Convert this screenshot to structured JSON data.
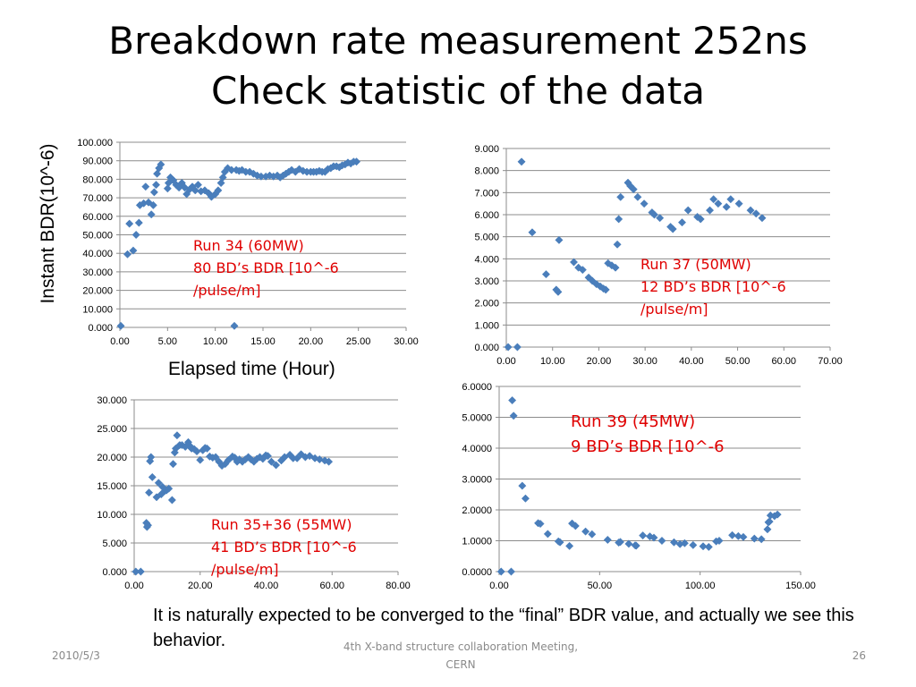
{
  "slide": {
    "title_line1": "Breakdown rate measurement 252ns",
    "title_line2": "Check statistic of the data",
    "y_axis_label": "Instant BDR(10^-6)",
    "x_axis_label": "Elapsed time (Hour)",
    "caption": "It is naturally expected to be converged to the “final” BDR value, and actually we see this behavior.",
    "footer_date": "2010/5/3",
    "footer_center": "4th X-band structure collaboration Meeting, CERN",
    "footer_page": "26"
  },
  "colors": {
    "marker": "#4a7ebb",
    "annotation": "#e00000",
    "grid": "#8c8c8c"
  },
  "annotations": {
    "run34": {
      "line1": "Run 34  (60MW)",
      "line2": "80 BD’s BDR  [10^-6",
      "line3": "/pulse/m]"
    },
    "run37": {
      "line1": "Run 37  (50MW)",
      "line2": "12 BD’s  BDR  [10^-6",
      "line3": "/pulse/m]"
    },
    "run3536": {
      "line1": "Run 35+36  (55MW)",
      "line2": "41 BD’s BDR  [10^-6",
      "line3": "/pulse/m]"
    },
    "run39": {
      "line1": "Run 39  (45MW)",
      "line2": "9 BD’s  BDR  [10^-6"
    }
  },
  "chart_data": [
    {
      "type": "scatter",
      "xlim": [
        0,
        30
      ],
      "ylim": [
        0,
        100
      ],
      "xticks": [
        "0.00",
        "5.00",
        "10.00",
        "15.00",
        "20.00",
        "25.00",
        "30.00"
      ],
      "yticks": [
        "0.000",
        "10.000",
        "20.000",
        "30.000",
        "40.000",
        "50.000",
        "60.000",
        "70.000",
        "80.000",
        "90.000",
        "100.000"
      ],
      "grid": "horizontal",
      "points": [
        [
          0.1,
          0.8
        ],
        [
          0.8,
          39.5
        ],
        [
          1.0,
          56
        ],
        [
          1.4,
          41.5
        ],
        [
          1.7,
          50
        ],
        [
          2.0,
          56.5
        ],
        [
          2.1,
          66
        ],
        [
          2.5,
          67
        ],
        [
          2.7,
          76
        ],
        [
          3.0,
          67.5
        ],
        [
          3.3,
          61
        ],
        [
          3.5,
          66
        ],
        [
          3.6,
          73
        ],
        [
          3.8,
          77
        ],
        [
          3.9,
          83
        ],
        [
          4.1,
          86
        ],
        [
          4.3,
          88
        ],
        [
          5.0,
          75
        ],
        [
          5.1,
          78
        ],
        [
          5.3,
          81
        ],
        [
          5.6,
          79.5
        ],
        [
          5.9,
          77
        ],
        [
          6.2,
          75.5
        ],
        [
          6.5,
          78
        ],
        [
          6.8,
          75.5
        ],
        [
          7.0,
          72
        ],
        [
          7.3,
          74.5
        ],
        [
          7.6,
          76
        ],
        [
          7.9,
          74
        ],
        [
          8.2,
          77
        ],
        [
          8.5,
          73.5
        ],
        [
          8.9,
          74
        ],
        [
          9.3,
          72.5
        ],
        [
          9.6,
          70.5
        ],
        [
          10.0,
          72
        ],
        [
          10.3,
          74
        ],
        [
          10.6,
          78
        ],
        [
          10.8,
          81
        ],
        [
          11.0,
          84
        ],
        [
          11.3,
          86
        ],
        [
          11.7,
          85
        ],
        [
          12.0,
          0.8
        ],
        [
          12.2,
          85
        ],
        [
          12.5,
          84.5
        ],
        [
          12.8,
          85
        ],
        [
          13.2,
          84
        ],
        [
          13.6,
          84
        ],
        [
          14.0,
          83
        ],
        [
          14.4,
          82
        ],
        [
          14.8,
          81.5
        ],
        [
          15.3,
          81.5
        ],
        [
          15.7,
          82
        ],
        [
          16.1,
          81.5
        ],
        [
          16.5,
          82
        ],
        [
          16.8,
          81
        ],
        [
          17.1,
          82
        ],
        [
          17.4,
          83
        ],
        [
          17.7,
          84
        ],
        [
          18.0,
          85
        ],
        [
          18.4,
          84
        ],
        [
          18.8,
          85.5
        ],
        [
          19.2,
          84.5
        ],
        [
          19.6,
          84
        ],
        [
          20.0,
          84
        ],
        [
          20.3,
          84
        ],
        [
          20.6,
          84
        ],
        [
          20.9,
          84.5
        ],
        [
          21.2,
          84
        ],
        [
          21.5,
          84
        ],
        [
          21.8,
          85.5
        ],
        [
          22.1,
          86
        ],
        [
          22.4,
          87
        ],
        [
          22.7,
          87
        ],
        [
          23.0,
          86.5
        ],
        [
          23.3,
          87.5
        ],
        [
          23.6,
          88
        ],
        [
          23.9,
          89
        ],
        [
          24.2,
          88.5
        ],
        [
          24.5,
          89.5
        ],
        [
          24.8,
          89.5
        ]
      ]
    },
    {
      "type": "scatter",
      "xlim": [
        0,
        70
      ],
      "ylim": [
        0,
        9
      ],
      "xticks": [
        "0.00",
        "10.00",
        "20.00",
        "30.00",
        "40.00",
        "50.00",
        "60.00",
        "70.00"
      ],
      "yticks": [
        "0.000",
        "1.000",
        "2.000",
        "3.000",
        "4.000",
        "5.000",
        "6.000",
        "7.000",
        "8.000",
        "9.000"
      ],
      "grid": "horizontal",
      "points": [
        [
          0.4,
          0.0
        ],
        [
          2.4,
          0.0
        ],
        [
          3.3,
          8.4
        ],
        [
          5.6,
          5.2
        ],
        [
          8.6,
          3.3
        ],
        [
          10.8,
          2.6
        ],
        [
          11.2,
          2.5
        ],
        [
          11.4,
          4.85
        ],
        [
          14.6,
          3.85
        ],
        [
          15.6,
          3.6
        ],
        [
          16.5,
          3.5
        ],
        [
          17.8,
          3.15
        ],
        [
          18.6,
          3.0
        ],
        [
          19.5,
          2.85
        ],
        [
          20.3,
          2.75
        ],
        [
          21.0,
          2.65
        ],
        [
          21.5,
          2.6
        ],
        [
          22.0,
          3.8
        ],
        [
          22.8,
          3.7
        ],
        [
          23.6,
          3.6
        ],
        [
          24.0,
          4.65
        ],
        [
          24.3,
          5.8
        ],
        [
          24.7,
          6.8
        ],
        [
          26.3,
          7.45
        ],
        [
          26.8,
          7.3
        ],
        [
          27.5,
          7.15
        ],
        [
          28.4,
          6.8
        ],
        [
          29.8,
          6.5
        ],
        [
          31.5,
          6.1
        ],
        [
          32.0,
          6.0
        ],
        [
          33.2,
          5.85
        ],
        [
          35.5,
          5.45
        ],
        [
          36.0,
          5.35
        ],
        [
          38.0,
          5.65
        ],
        [
          39.3,
          6.2
        ],
        [
          41.3,
          5.9
        ],
        [
          42.0,
          5.8
        ],
        [
          44.0,
          6.2
        ],
        [
          44.8,
          6.7
        ],
        [
          45.8,
          6.5
        ],
        [
          47.6,
          6.35
        ],
        [
          48.5,
          6.7
        ],
        [
          50.3,
          6.5
        ],
        [
          52.8,
          6.2
        ],
        [
          54.0,
          6.05
        ],
        [
          55.3,
          5.85
        ]
      ]
    },
    {
      "type": "scatter",
      "xlim": [
        0,
        80
      ],
      "ylim": [
        0,
        30
      ],
      "xticks": [
        "0.00",
        "20.00",
        "40.00",
        "60.00",
        "80.00"
      ],
      "yticks": [
        "0.000",
        "5.000",
        "10.000",
        "15.000",
        "20.000",
        "25.000",
        "30.000"
      ],
      "grid": "horizontal",
      "points": [
        [
          0.5,
          0
        ],
        [
          2.0,
          0
        ],
        [
          3.7,
          8.5
        ],
        [
          3.9,
          7.8
        ],
        [
          4.2,
          8.1
        ],
        [
          4.5,
          13.8
        ],
        [
          4.8,
          19.3
        ],
        [
          5.1,
          20
        ],
        [
          5.5,
          16.5
        ],
        [
          6.8,
          13.0
        ],
        [
          7.4,
          15.5
        ],
        [
          8.2,
          13.5
        ],
        [
          8.6,
          14.8
        ],
        [
          9.3,
          14.1
        ],
        [
          9.8,
          14.2
        ],
        [
          10.5,
          14.5
        ],
        [
          11.5,
          12.5
        ],
        [
          11.8,
          18.8
        ],
        [
          12.3,
          20.8
        ],
        [
          12.6,
          21.5
        ],
        [
          13.0,
          23.8
        ],
        [
          13.8,
          22.1
        ],
        [
          14.5,
          22.1
        ],
        [
          15.5,
          21.8
        ],
        [
          16.4,
          22.6
        ],
        [
          16.8,
          22.0
        ],
        [
          17.4,
          21.5
        ],
        [
          18.2,
          21.4
        ],
        [
          19.0,
          21.0
        ],
        [
          20.0,
          19.5
        ],
        [
          20.8,
          21.2
        ],
        [
          21.5,
          21.6
        ],
        [
          22.1,
          21.5
        ],
        [
          22.9,
          20.1
        ],
        [
          23.8,
          19.9
        ],
        [
          24.7,
          20.0
        ],
        [
          25.7,
          19.2
        ],
        [
          26.6,
          18.5
        ],
        [
          27.6,
          18.8
        ],
        [
          28.6,
          19.5
        ],
        [
          29.8,
          20.1
        ],
        [
          30.5,
          19.9
        ],
        [
          31.2,
          19.2
        ],
        [
          31.9,
          19.6
        ],
        [
          32.8,
          19.2
        ],
        [
          33.7,
          19.6
        ],
        [
          34.6,
          20.0
        ],
        [
          35.4,
          19.6
        ],
        [
          36.3,
          19.2
        ],
        [
          37.2,
          19.7
        ],
        [
          38.1,
          20.0
        ],
        [
          39.0,
          19.7
        ],
        [
          39.9,
          20.3
        ],
        [
          40.5,
          20.2
        ],
        [
          41.6,
          19.2
        ],
        [
          43.0,
          18.6
        ],
        [
          44.6,
          19.4
        ],
        [
          45.6,
          20.0
        ],
        [
          47.2,
          20.4
        ],
        [
          48.2,
          19.8
        ],
        [
          49.4,
          19.8
        ],
        [
          50.6,
          20.5
        ],
        [
          51.9,
          20.0
        ],
        [
          53.2,
          20.2
        ],
        [
          54.8,
          19.8
        ],
        [
          56.2,
          19.6
        ],
        [
          57.8,
          19.4
        ],
        [
          59.0,
          19.2
        ]
      ]
    },
    {
      "type": "scatter",
      "xlim": [
        0,
        150
      ],
      "ylim": [
        0,
        6
      ],
      "xticks": [
        "0.00",
        "50.00",
        "100.00",
        "150.00"
      ],
      "yticks": [
        "0.0000",
        "1.0000",
        "2.0000",
        "3.0000",
        "4.0000",
        "5.0000",
        "6.0000"
      ],
      "grid": "horizontal",
      "points": [
        [
          1,
          0
        ],
        [
          6,
          0
        ],
        [
          6.5,
          5.55
        ],
        [
          7.2,
          5.05
        ],
        [
          11.5,
          2.78
        ],
        [
          13.1,
          2.37
        ],
        [
          19.4,
          1.57
        ],
        [
          20.5,
          1.55
        ],
        [
          24.2,
          1.22
        ],
        [
          29.5,
          0.98
        ],
        [
          30.3,
          0.95
        ],
        [
          35.0,
          0.83
        ],
        [
          36.3,
          1.56
        ],
        [
          38.0,
          1.48
        ],
        [
          43.0,
          1.3
        ],
        [
          46.2,
          1.21
        ],
        [
          54.0,
          1.03
        ],
        [
          59.5,
          0.94
        ],
        [
          60.3,
          0.96
        ],
        [
          64.5,
          0.9
        ],
        [
          67.7,
          0.85
        ],
        [
          68.2,
          0.84
        ],
        [
          71.5,
          1.17
        ],
        [
          75.0,
          1.14
        ],
        [
          77.0,
          1.1
        ],
        [
          81.0,
          1.0
        ],
        [
          87.0,
          0.95
        ],
        [
          90.0,
          0.89
        ],
        [
          92.3,
          0.92
        ],
        [
          96.5,
          0.86
        ],
        [
          101.5,
          0.82
        ],
        [
          104.3,
          0.8
        ],
        [
          108.0,
          0.98
        ],
        [
          109.5,
          1.0
        ],
        [
          116.0,
          1.18
        ],
        [
          119.0,
          1.15
        ],
        [
          121.5,
          1.12
        ],
        [
          127.0,
          1.07
        ],
        [
          130.5,
          1.05
        ],
        [
          133.5,
          1.37
        ],
        [
          134.0,
          1.6
        ],
        [
          134.5,
          1.62
        ],
        [
          135.0,
          1.82
        ],
        [
          137.0,
          1.8
        ],
        [
          138.5,
          1.85
        ]
      ]
    }
  ]
}
